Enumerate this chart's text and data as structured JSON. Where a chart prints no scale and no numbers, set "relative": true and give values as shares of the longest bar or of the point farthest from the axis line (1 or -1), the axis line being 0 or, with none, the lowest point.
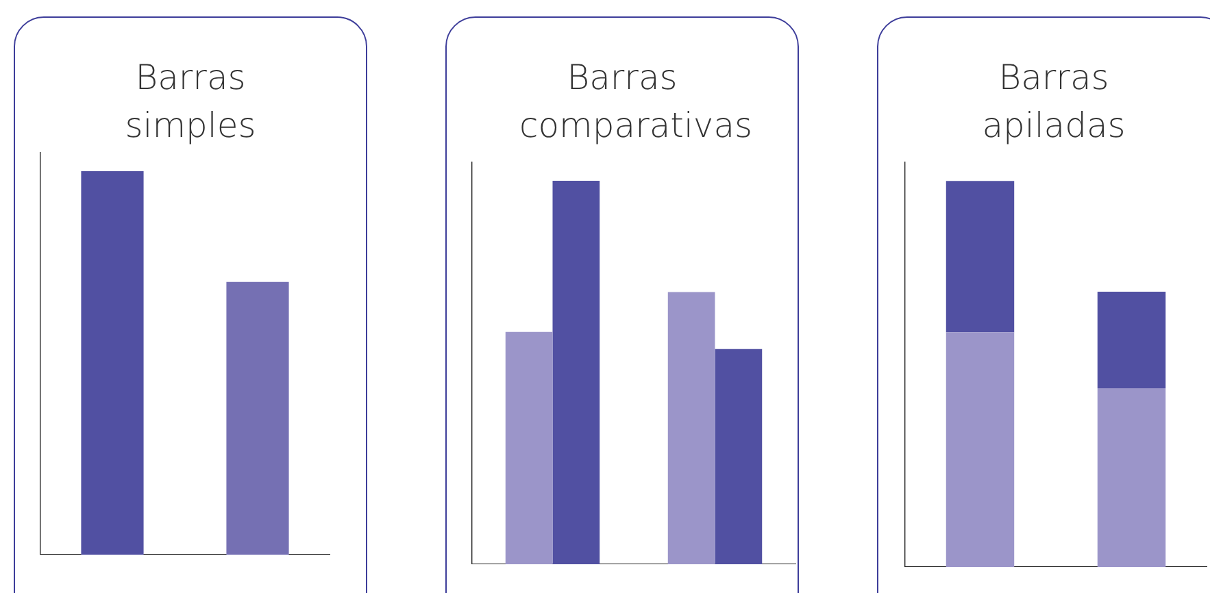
{
  "chart_data": [
    {
      "type": "bar",
      "title": "Barras simples",
      "categories": [
        null,
        null
      ],
      "values": [
        1,
        0.711
      ],
      "colors": [
        "#5150a2",
        "#7570b3"
      ],
      "relative": true
    },
    {
      "type": "bar",
      "title": "Barras comparativas",
      "categories": [
        null,
        null
      ],
      "relative": true,
      "series": [
        {
          "color": "#9b95c9",
          "values": [
            0.606,
            0.71
          ]
        },
        {
          "color": "#5150a2",
          "values": [
            1,
            0.561
          ]
        }
      ]
    },
    {
      "type": "bar",
      "title": "Barras apiladas",
      "categories": [
        null,
        null
      ],
      "relative": true,
      "stacked": true,
      "series": [
        {
          "color": "#9b95c9",
          "values": [
            0.608,
            0.463
          ]
        },
        {
          "color": "#5150a2",
          "values": [
            0.392,
            0.25
          ]
        }
      ]
    }
  ]
}
